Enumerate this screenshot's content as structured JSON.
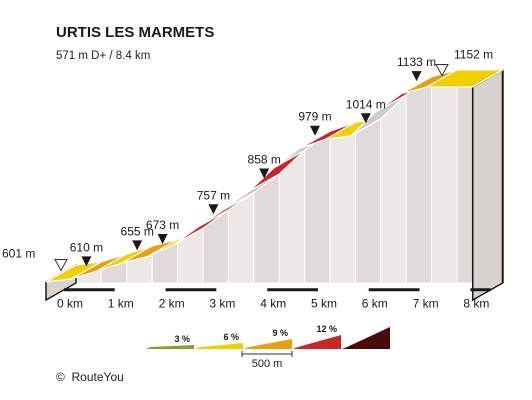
{
  "chart_data": {
    "type": "area",
    "title": "URTIS LES MARMETS",
    "subtitle": "571 m D+ / 8.4 km",
    "credit_symbol": "©",
    "credit": "RouteYou",
    "x_unit": "km",
    "y_unit": "m",
    "xlim": [
      0,
      8.4
    ],
    "x_ticks": [
      {
        "value": 0,
        "label": "0 km"
      },
      {
        "value": 1,
        "label": "1 km"
      },
      {
        "value": 2,
        "label": "2 km"
      },
      {
        "value": 3,
        "label": "3 km"
      },
      {
        "value": 4,
        "label": "4 km"
      },
      {
        "value": 5,
        "label": "5 km"
      },
      {
        "value": 6,
        "label": "6 km"
      },
      {
        "value": 7,
        "label": "7 km"
      },
      {
        "value": 8,
        "label": "8 km"
      }
    ],
    "points": [
      {
        "x": 0.0,
        "y": 601
      },
      {
        "x": 0.5,
        "y": 610
      },
      {
        "x": 1.0,
        "y": 632
      },
      {
        "x": 1.5,
        "y": 655
      },
      {
        "x": 2.0,
        "y": 673
      },
      {
        "x": 2.5,
        "y": 705
      },
      {
        "x": 3.0,
        "y": 757
      },
      {
        "x": 3.5,
        "y": 805
      },
      {
        "x": 4.0,
        "y": 858
      },
      {
        "x": 4.5,
        "y": 925
      },
      {
        "x": 5.0,
        "y": 979
      },
      {
        "x": 5.5,
        "y": 1004
      },
      {
        "x": 6.0,
        "y": 1014
      },
      {
        "x": 6.5,
        "y": 1082
      },
      {
        "x": 7.0,
        "y": 1133
      },
      {
        "x": 7.5,
        "y": 1152
      },
      {
        "x": 8.4,
        "y": 1152
      }
    ],
    "segment_gradient_band": [
      1,
      2,
      1,
      2,
      1,
      3,
      3,
      5,
      3,
      5,
      3,
      1,
      5,
      3,
      2,
      1
    ],
    "labels": [
      {
        "x": 0.0,
        "y": 601,
        "text": "601 m",
        "marker": "start"
      },
      {
        "x": 0.5,
        "y": 610,
        "text": "610 m",
        "marker": "peak"
      },
      {
        "x": 1.5,
        "y": 655,
        "text": "655 m",
        "marker": "peak"
      },
      {
        "x": 2.0,
        "y": 673,
        "text": "673 m",
        "marker": "peak"
      },
      {
        "x": 3.0,
        "y": 757,
        "text": "757 m",
        "marker": "peak"
      },
      {
        "x": 4.0,
        "y": 858,
        "text": "858 m",
        "marker": "peak"
      },
      {
        "x": 5.0,
        "y": 979,
        "text": "979 m",
        "marker": "peak"
      },
      {
        "x": 6.0,
        "y": 1014,
        "text": "1014 m",
        "marker": "peak"
      },
      {
        "x": 7.0,
        "y": 1133,
        "text": "1133 m",
        "marker": "peak"
      },
      {
        "x": 7.5,
        "y": 1152,
        "text": "1152 m",
        "marker": "end"
      }
    ],
    "legend": {
      "bands": [
        {
          "label": "3 %",
          "color": "#8a9e2a"
        },
        {
          "label": "6 %",
          "color": "#f2cf00"
        },
        {
          "label": "9 %",
          "color": "#e8a010"
        },
        {
          "label": "12 %",
          "color": "#c8262a"
        },
        {
          "label": "",
          "color": "#4a0a0a"
        }
      ],
      "scale_label": "500 m"
    },
    "colors": {
      "face_light": "#ece8e5",
      "face_dark": "#e0dbd8",
      "outline": "#1a1a1a"
    }
  }
}
